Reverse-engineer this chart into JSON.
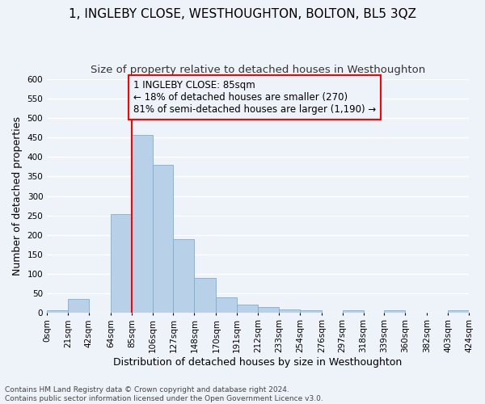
{
  "title": "1, INGLEBY CLOSE, WESTHOUGHTON, BOLTON, BL5 3QZ",
  "subtitle": "Size of property relative to detached houses in Westhoughton",
  "xlabel": "Distribution of detached houses by size in Westhoughton",
  "ylabel": "Number of detached properties",
  "footnote1": "Contains HM Land Registry data © Crown copyright and database right 2024.",
  "footnote2": "Contains public sector information licensed under the Open Government Licence v3.0.",
  "bar_color": "#b8d0e8",
  "bar_edge_color": "#7aafd4",
  "red_line_x": 85,
  "annotation_text": "1 INGLEBY CLOSE: 85sqm\n← 18% of detached houses are smaller (270)\n81% of semi-detached houses are larger (1,190) →",
  "bin_edges": [
    0,
    21,
    42,
    64,
    85,
    106,
    127,
    148,
    170,
    191,
    212,
    233,
    254,
    276,
    297,
    318,
    339,
    360,
    382,
    403,
    424
  ],
  "bar_heights": [
    5,
    35,
    0,
    253,
    458,
    380,
    188,
    88,
    38,
    20,
    13,
    7,
    6,
    0,
    6,
    0,
    6,
    0,
    0,
    5
  ],
  "ylim": [
    0,
    600
  ],
  "yticks": [
    0,
    50,
    100,
    150,
    200,
    250,
    300,
    350,
    400,
    450,
    500,
    550,
    600
  ],
  "bg_color": "#eef2f9",
  "grid_color": "#ffffff",
  "title_fontsize": 11,
  "subtitle_fontsize": 9.5,
  "axis_label_fontsize": 9,
  "tick_fontsize": 7.5,
  "annotation_fontsize": 8.5
}
